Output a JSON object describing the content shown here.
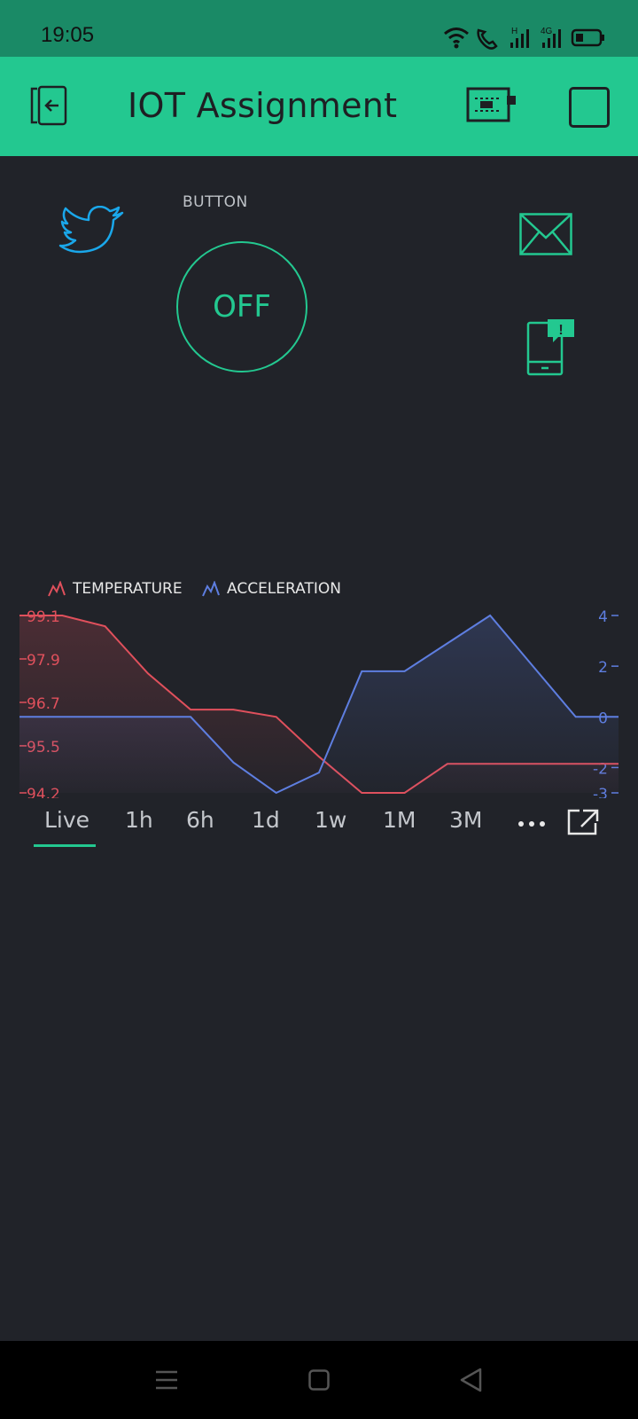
{
  "status_bar": {
    "time": "19:05",
    "icons": [
      "wifi-icon",
      "wifi-calling-icon",
      "signal-h-icon",
      "signal-4g-icon",
      "battery-icon"
    ],
    "signal_labels": [
      "H",
      "4G"
    ]
  },
  "app_bar": {
    "title": "IOT Assignment",
    "icons": [
      "exit-icon",
      "device-board-icon",
      "stop-square-icon"
    ]
  },
  "widgets": {
    "button_caption": "BUTTON",
    "button_state": "OFF",
    "icons": [
      "twitter-icon",
      "email-icon",
      "phone-notification-icon"
    ]
  },
  "legend": {
    "temperature": "TEMPERATURE",
    "acceleration": "ACCELERATION"
  },
  "tabs": [
    "Live",
    "1h",
    "6h",
    "1d",
    "1w",
    "1M",
    "3M"
  ],
  "active_tab": "Live",
  "tab_icons": [
    "more-icon",
    "expand-icon"
  ],
  "nav_bar": {
    "icons": [
      "menu-icon",
      "home-icon",
      "back-icon"
    ]
  },
  "colors": {
    "accent": "#23c890",
    "status_bar": "#1a8a66",
    "background": "#212329",
    "temperature": "#e0505c",
    "acceleration": "#5e7ee0"
  },
  "chart_data": {
    "type": "line",
    "series": [
      {
        "name": "TEMPERATURE",
        "axis": "left",
        "x": [
          0,
          1,
          2,
          3,
          4,
          5,
          6,
          7,
          8,
          9,
          10,
          11,
          12,
          13,
          14
        ],
        "values": [
          99.1,
          99.1,
          98.8,
          97.5,
          96.5,
          96.5,
          96.3,
          95.2,
          94.2,
          94.2,
          95.0,
          95.0,
          95.0,
          95.0,
          95.0
        ]
      },
      {
        "name": "ACCELERATION",
        "axis": "right",
        "x": [
          0,
          1,
          2,
          3,
          4,
          5,
          6,
          7,
          8,
          9,
          10,
          11,
          12,
          13,
          14
        ],
        "values": [
          0,
          0,
          0,
          0,
          0,
          -1.8,
          -3,
          -2.2,
          1.8,
          1.8,
          2.9,
          4,
          2,
          0,
          0
        ]
      }
    ],
    "left_axis": {
      "ticks": [
        "99.1",
        "97.9",
        "96.7",
        "95.5",
        "94.2"
      ],
      "range": [
        94.2,
        99.1
      ]
    },
    "right_axis": {
      "ticks": [
        "4",
        "2",
        "0",
        "-2",
        "-3"
      ],
      "range": [
        -3,
        4
      ]
    }
  }
}
